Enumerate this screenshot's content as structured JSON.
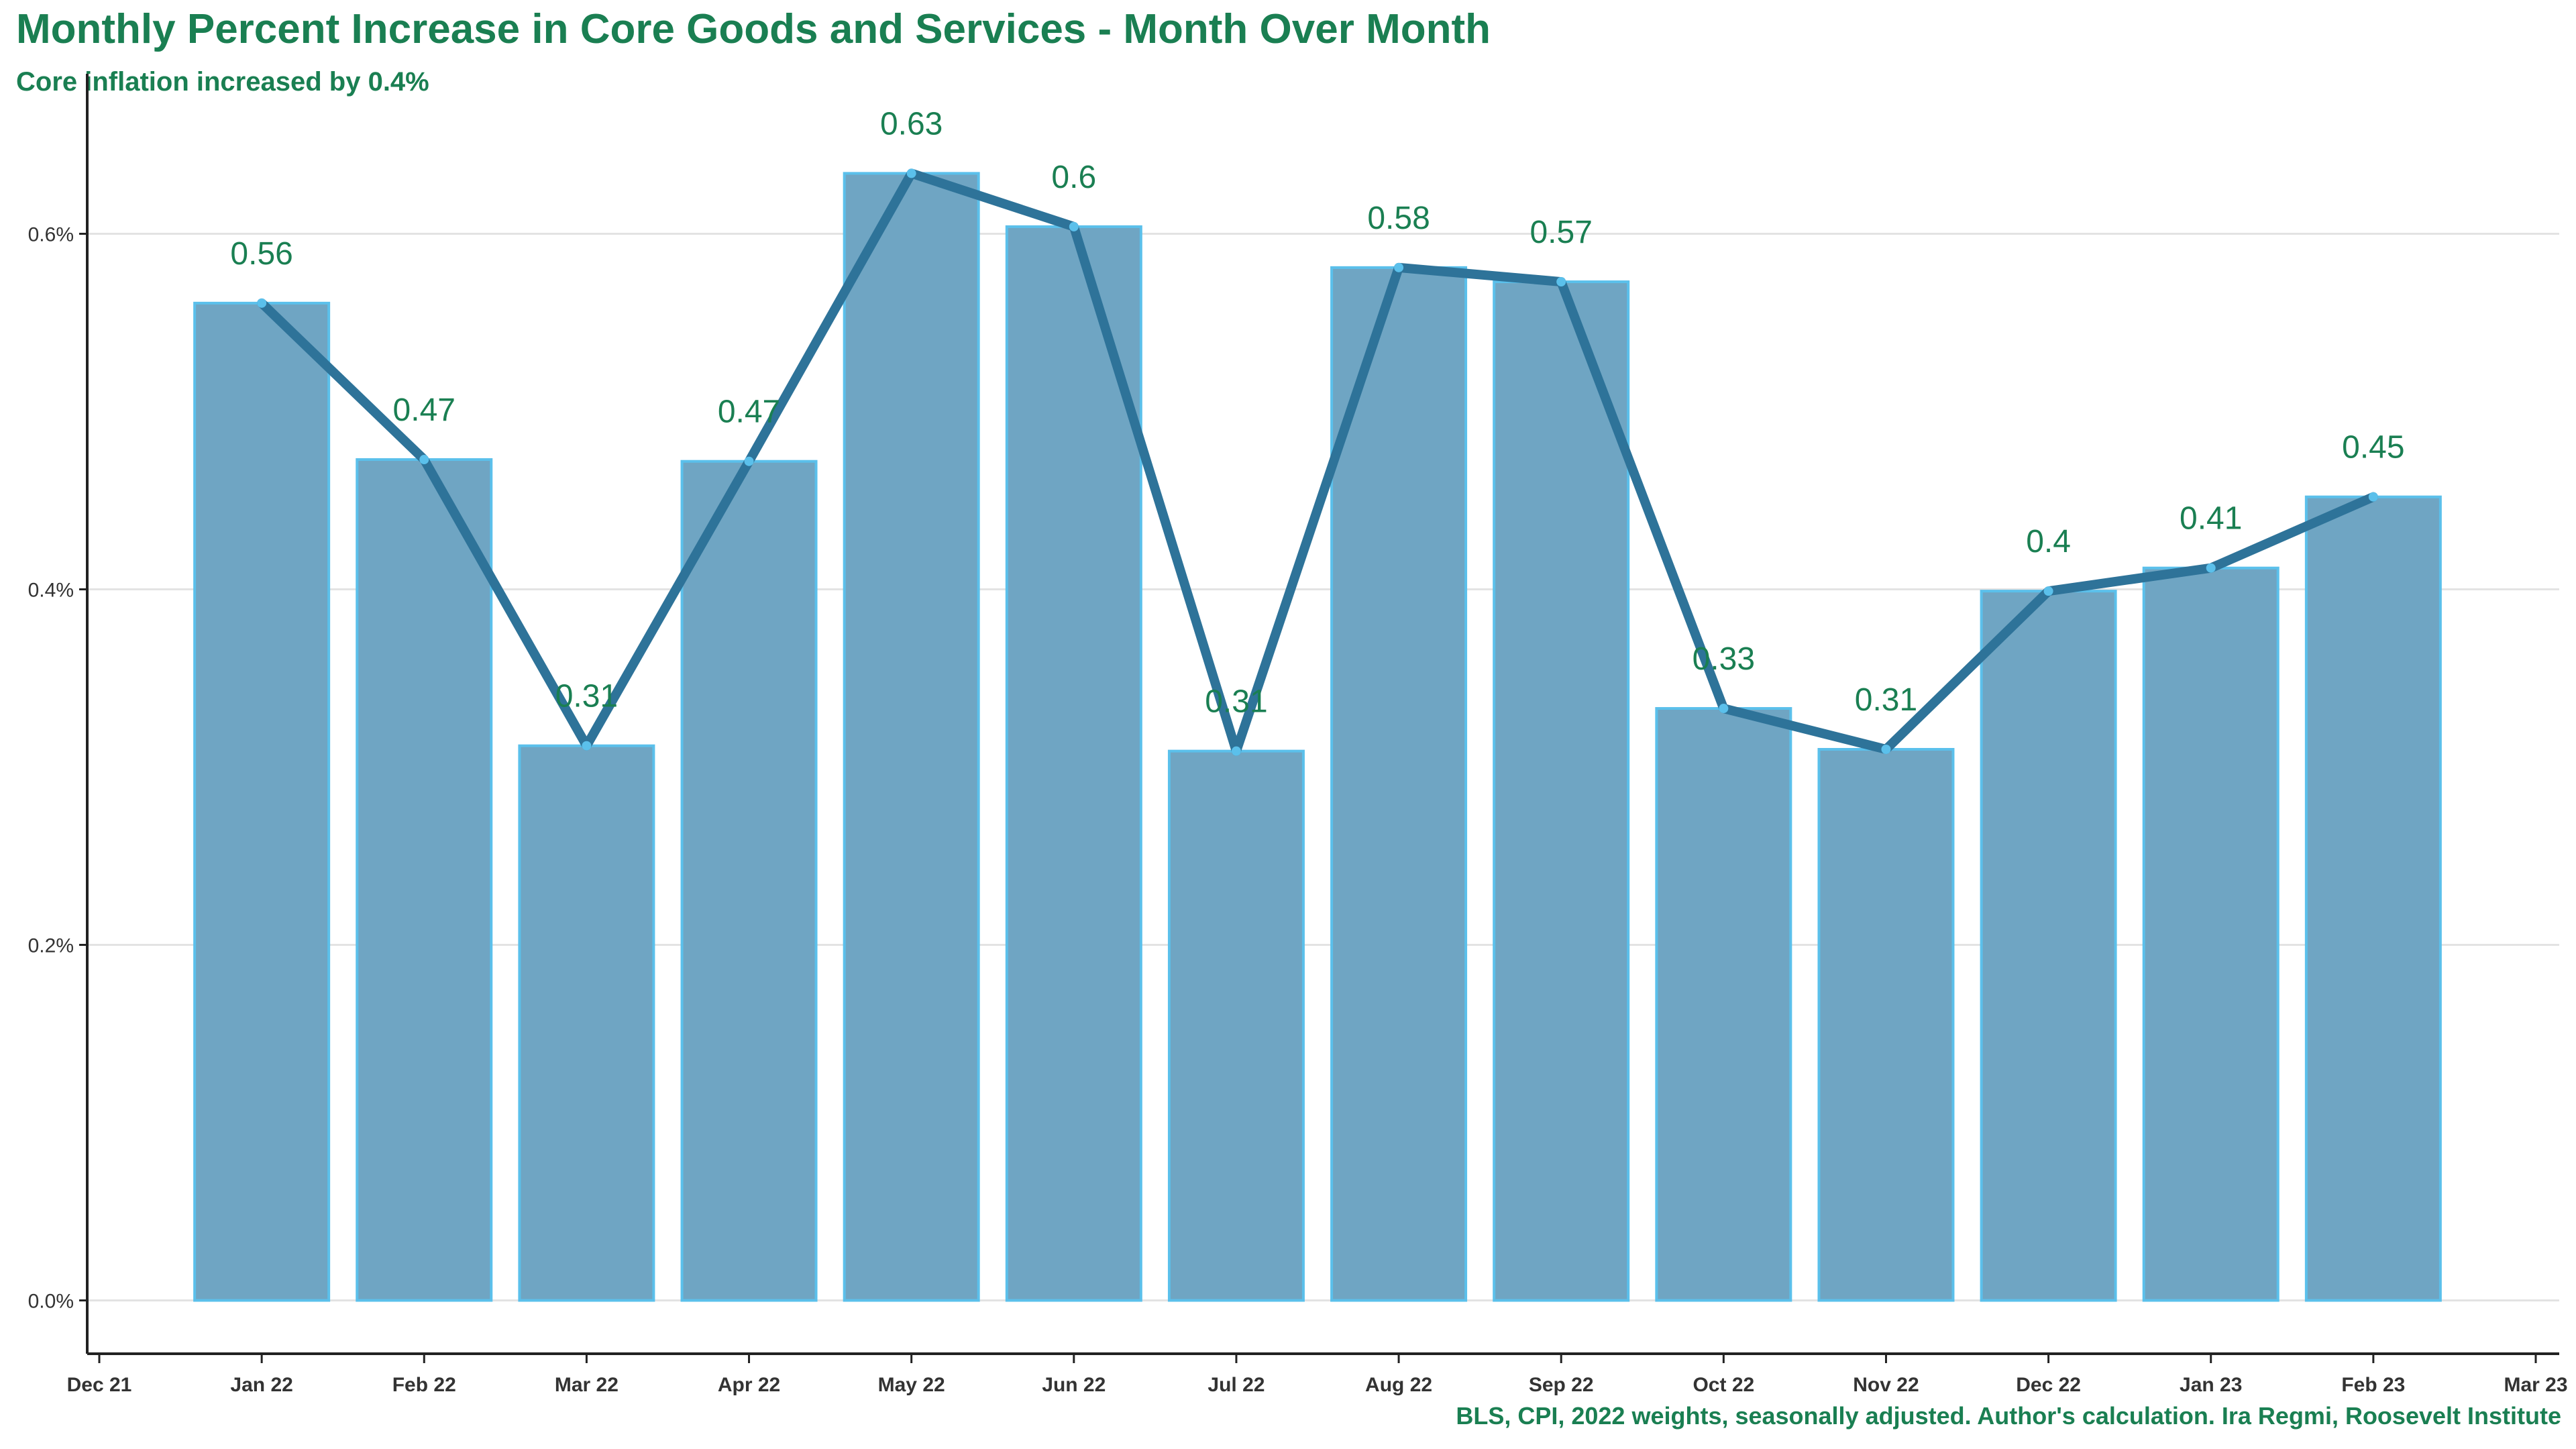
{
  "chart_data": {
    "type": "bar",
    "title": "Monthly Percent Increase in Core Goods and Services - Month Over Month",
    "subtitle": "Core inflation increased by 0.4%",
    "caption": "BLS, CPI, 2022 weights, seasonally adjusted. Author's calculation. Ira Regmi, Roosevelt Institute",
    "xlabel": "",
    "ylabel": "",
    "x_axis_ticks": [
      "Dec 21",
      "Jan 22",
      "Feb 22",
      "Mar 22",
      "Apr 22",
      "May 22",
      "Jun 22",
      "Jul 22",
      "Aug 22",
      "Sep 22",
      "Oct 22",
      "Nov 22",
      "Dec 22",
      "Jan 23",
      "Feb 23",
      "Mar 23"
    ],
    "y_axis_ticks": [
      "0.0%",
      "0.2%",
      "0.4%",
      "0.6%"
    ],
    "y_tick_values": [
      0,
      0.2,
      0.4,
      0.6
    ],
    "ylim": [
      -0.03,
      0.69
    ],
    "grid": "horizontal",
    "categories": [
      "Jan 22",
      "Feb 22",
      "Mar 22",
      "Apr 22",
      "May 22",
      "Jun 22",
      "Jul 22",
      "Aug 22",
      "Sep 22",
      "Oct 22",
      "Nov 22",
      "Dec 22",
      "Jan 23",
      "Feb 23"
    ],
    "values": [
      0.561,
      0.473,
      0.312,
      0.472,
      0.634,
      0.604,
      0.309,
      0.581,
      0.573,
      0.333,
      0.31,
      0.399,
      0.412,
      0.452
    ],
    "data_labels": [
      "0.56",
      "0.47",
      "0.31",
      "0.47",
      "0.63",
      "0.6",
      "0.31",
      "0.58",
      "0.57",
      "0.33",
      "0.31",
      "0.4",
      "0.41",
      "0.45"
    ],
    "overlay": "line through bar tops",
    "colors": {
      "bar_fill": "#6fa5c3",
      "bar_edge": "#5bc0eb",
      "line": "#2e7399",
      "text_green": "#1a7f52",
      "grid": "#e3e3e3",
      "axis": "#222222"
    }
  }
}
